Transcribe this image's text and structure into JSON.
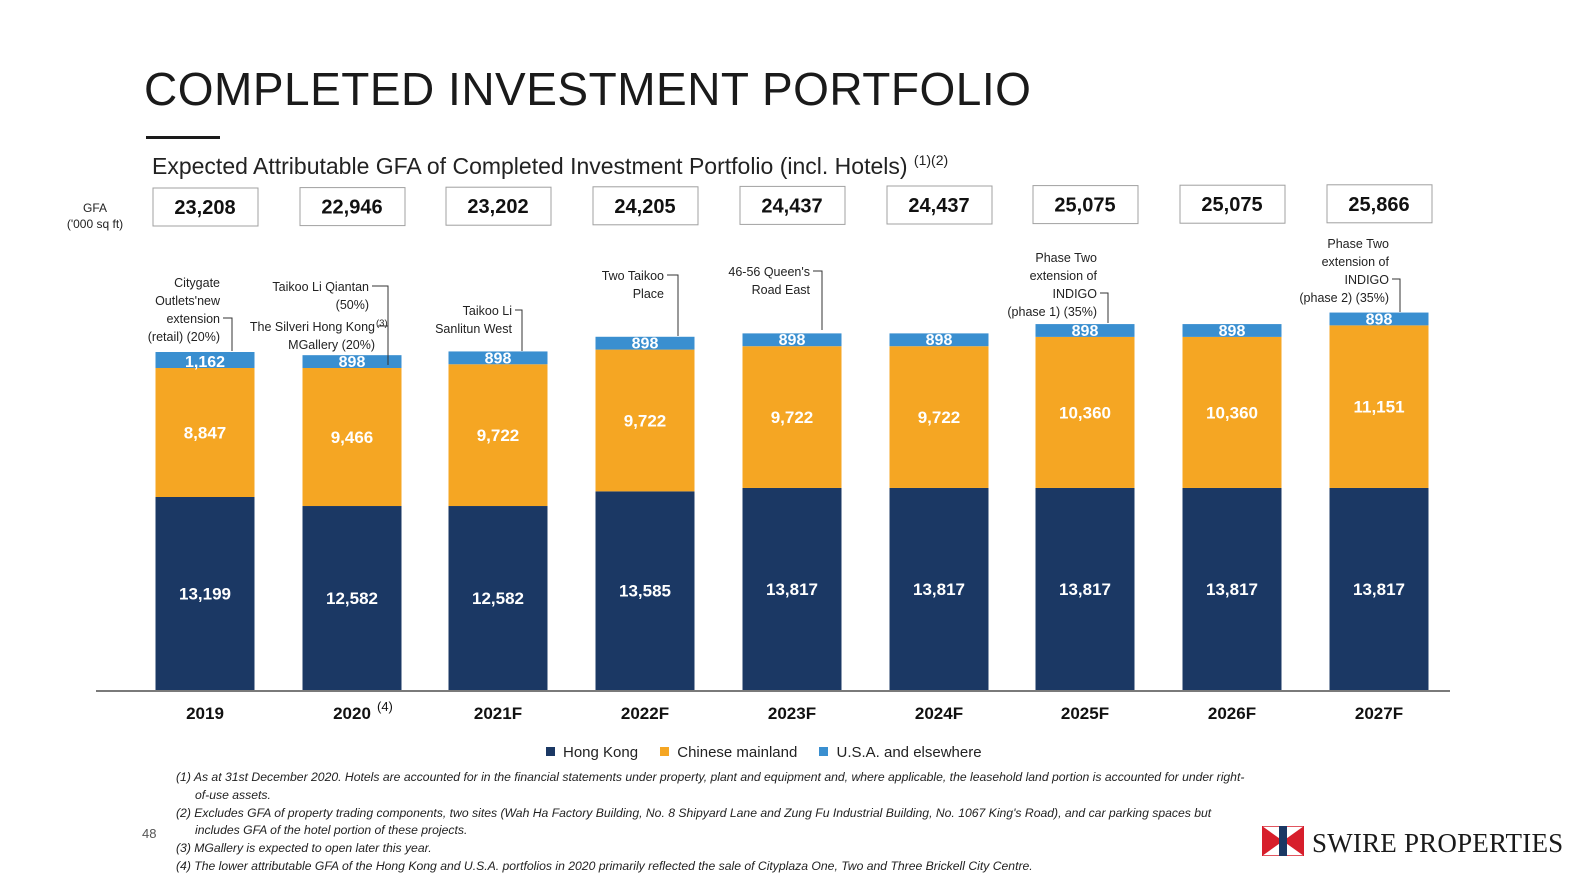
{
  "header": {
    "title": "COMPLETED INVESTMENT PORTFOLIO",
    "subtitle": "Expected Attributable GFA of Completed Investment Portfolio (incl. Hotels)",
    "subtitle_notes": "(1)(2)"
  },
  "gfa_label": {
    "line1": "GFA",
    "line2": "('000 sq ft)"
  },
  "chart_data": {
    "type": "bar",
    "stacked": true,
    "categories": [
      "2019",
      "2020",
      "2021F",
      "2022F",
      "2023F",
      "2024F",
      "2025F",
      "2026F",
      "2027F"
    ],
    "category_notes": [
      "",
      "(4)",
      "",
      "",
      "",
      "",
      "",
      "",
      ""
    ],
    "totals": [
      "23,208",
      "22,946",
      "23,202",
      "24,205",
      "24,437",
      "24,437",
      "25,075",
      "25,075",
      "25,866"
    ],
    "series": [
      {
        "name": "Hong Kong",
        "color": "#1b3864",
        "values": [
          13199,
          12582,
          12582,
          13585,
          13817,
          13817,
          13817,
          13817,
          13817
        ],
        "labels": [
          "13,199",
          "12,582",
          "12,582",
          "13,585",
          "13,817",
          "13,817",
          "13,817",
          "13,817",
          "13,817"
        ]
      },
      {
        "name": "Chinese mainland",
        "color": "#f5a623",
        "values": [
          8847,
          9466,
          9722,
          9722,
          9722,
          9722,
          10360,
          10360,
          11151
        ],
        "labels": [
          "8,847",
          "9,466",
          "9,722",
          "9,722",
          "9,722",
          "9,722",
          "10,360",
          "10,360",
          "11,151"
        ]
      },
      {
        "name": "U.S.A. and elsewhere",
        "color": "#3a8fd0",
        "values": [
          1162,
          898,
          898,
          898,
          898,
          898,
          898,
          898,
          898
        ],
        "labels": [
          "1,162",
          "898",
          "898",
          "898",
          "898",
          "898",
          "898",
          "898",
          "898"
        ]
      }
    ],
    "annotations": [
      {
        "category": "2019",
        "lines": [
          "Citygate",
          "Outlets'new",
          "extension",
          "(retail) (20%)"
        ]
      },
      {
        "category": "2020",
        "lines": [
          "Taikoo Li Qiantan",
          "(50%)"
        ]
      },
      {
        "category": "2020",
        "lines": [
          "The Silveri Hong Kong",
          "MGallery (20%)"
        ],
        "note": "(3)"
      },
      {
        "category": "2021F",
        "lines": [
          "Taikoo Li",
          "Sanlitun West"
        ]
      },
      {
        "category": "2022F",
        "lines": [
          "Two Taikoo",
          "Place"
        ]
      },
      {
        "category": "2023F",
        "lines": [
          "46-56 Queen's",
          "Road East"
        ]
      },
      {
        "category": "2025F",
        "lines": [
          "Phase Two",
          "extension of",
          "INDIGO",
          "(phase 1) (35%)"
        ]
      },
      {
        "category": "2027F",
        "lines": [
          "Phase Two",
          "extension of",
          "INDIGO",
          "(phase 2) (35%)"
        ]
      }
    ],
    "legend_position": "bottom",
    "grid": false
  },
  "footnotes": [
    "(1) As at 31st December 2020. Hotels are accounted for in the financial statements under property, plant and equipment and, where applicable, the leasehold land portion is accounted for under right-of-use assets.",
    "(2) Excludes GFA of property trading components, two sites (Wah Ha Factory Building, No. 8 Shipyard Lane and Zung Fu Industrial Building, No. 1067 King's Road), and car parking spaces but includes GFA of the hotel portion of these projects.",
    "(3) MGallery is expected to open later this year.",
    "(4) The lower attributable GFA of the Hong Kong and U.S.A. portfolios in 2020 primarily reflected the sale of Cityplaza One, Two and Three Brickell City Centre."
  ],
  "page_number": "48",
  "logo": {
    "text": "SWIRE PROPERTIES",
    "colors": {
      "red": "#d71e2b",
      "navy": "#1b3864"
    }
  }
}
